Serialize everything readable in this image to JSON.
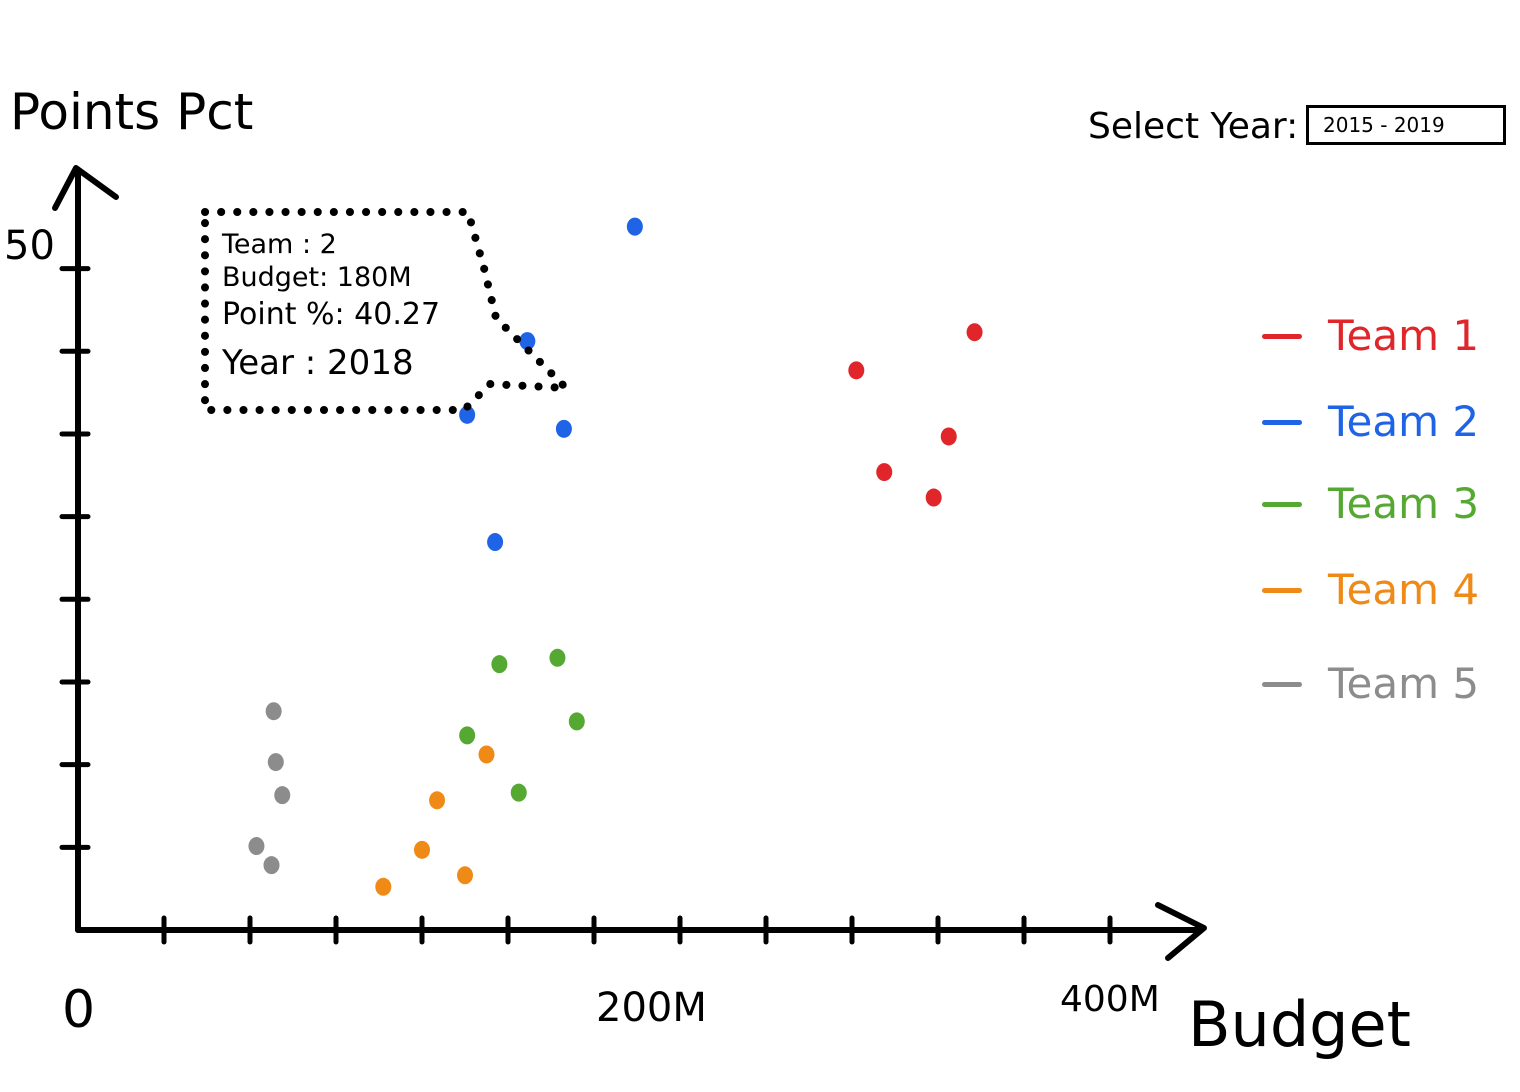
{
  "y_axis": {
    "title": "Points Pct",
    "tick_label": "50"
  },
  "x_axis": {
    "title": "Budget",
    "origin_label": "0",
    "tick_label_200": "200M",
    "tick_label_400": "400M"
  },
  "year_selector": {
    "label": "Select Year:",
    "value": "2015 - 2019"
  },
  "tooltip": {
    "team": "Team : 2",
    "budget": "Budget: 180M",
    "points": "Point %: 40.27",
    "year": "Year : 2018"
  },
  "legend": [
    {
      "label": "Team 1",
      "color": "#e0262a"
    },
    {
      "label": "Team 2",
      "color": "#1f63e6"
    },
    {
      "label": "Team 3",
      "color": "#55a832"
    },
    {
      "label": "Team 4",
      "color": "#f08a16"
    },
    {
      "label": "Team 5",
      "color": "#8c8c8c"
    }
  ],
  "chart_data": {
    "type": "scatter",
    "xlim": [
      0,
      480
    ],
    "ylim": [
      0,
      57
    ],
    "series": [
      {
        "name": "Team 1",
        "color": "#e0262a",
        "points": [
          [
            362,
            44
          ],
          [
            375,
            36
          ],
          [
            398,
            34
          ],
          [
            405,
            38.8
          ],
          [
            417,
            47
          ]
        ]
      },
      {
        "name": "Team 2",
        "color": "#1f63e6",
        "points": [
          [
            181,
            40.5
          ],
          [
            194,
            30.5
          ],
          [
            209,
            46.3
          ],
          [
            226,
            39.4
          ],
          [
            259,
            55.3
          ]
        ]
      },
      {
        "name": "Team 3",
        "color": "#55a832",
        "points": [
          [
            181,
            15.3
          ],
          [
            196,
            20.9
          ],
          [
            205,
            10.8
          ],
          [
            223,
            21.4
          ],
          [
            232,
            16.4
          ]
        ]
      },
      {
        "name": "Team 4",
        "color": "#f08a16",
        "points": [
          [
            142,
            3.4
          ],
          [
            160,
            6.3
          ],
          [
            167,
            10.2
          ],
          [
            180,
            4.3
          ],
          [
            190,
            13.8
          ]
        ]
      },
      {
        "name": "Team 5",
        "color": "#8c8c8c",
        "points": [
          [
            83,
            6.6
          ],
          [
            90,
            5.1
          ],
          [
            91,
            17.2
          ],
          [
            92,
            13.2
          ],
          [
            95,
            10.6
          ]
        ]
      }
    ]
  }
}
